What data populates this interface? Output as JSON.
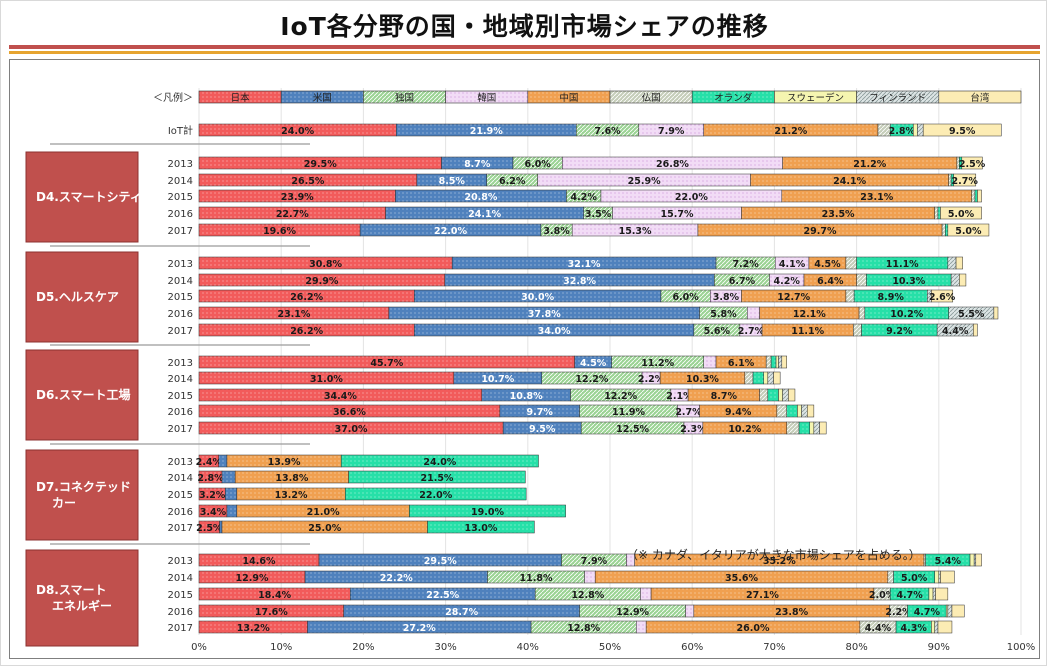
{
  "title": "IoT各分野の国・地域別市場シェアの推移",
  "note": "（※ カナダ、イタリアが大きな市場シェアを占める。）",
  "colors": {
    "日本": "#f25b5b",
    "米国": "#4f81bd",
    "独国": "#9bd394",
    "韓国": "#f2dcf6",
    "中国": "#f0a050",
    "仏国": "#c5cdb9",
    "オランダ": "#26e0a8",
    "スウェーデン": "#f5f5b0",
    "フィンランド": "#dde5e5",
    "台湾": "#fcecb4"
  },
  "chart_data": {
    "type": "bar",
    "orientation": "horizontal",
    "stacked": true,
    "legend_label": "＜凡例＞",
    "legend": [
      "日本",
      "米国",
      "独国",
      "韓国",
      "中国",
      "仏国",
      "オランダ",
      "スウェーデン",
      "フィンランド",
      "台湾"
    ],
    "xlim": [
      0,
      100
    ],
    "xticks": [
      "0%",
      "10%",
      "20%",
      "30%",
      "40%",
      "50%",
      "60%",
      "70%",
      "80%",
      "90%",
      "100%"
    ],
    "groups": [
      {
        "name": "",
        "rows": [
          {
            "label": "IoT計",
            "values": [
              24.0,
              21.9,
              7.6,
              7.9,
              21.2,
              1.5,
              2.8,
              0.5,
              0.7,
              9.5
            ],
            "labels": [
              "24.0%",
              "21.9%",
              "7.6%",
              "7.9%",
              "21.2%",
              "",
              "2.8%",
              "",
              "",
              "9.5%"
            ]
          }
        ]
      },
      {
        "name": "D4.スマートシティ",
        "rows": [
          {
            "label": "2013",
            "values": [
              29.5,
              8.7,
              6.0,
              26.8,
              21.2,
              0.3,
              0.3,
              0.0,
              0.0,
              2.5
            ],
            "labels": [
              "29.5%",
              "8.7%",
              "6.0%",
              "26.8%",
              "21.2%",
              "",
              "",
              "",
              "",
              "2.5%"
            ]
          },
          {
            "label": "2014",
            "values": [
              26.5,
              8.5,
              6.2,
              25.9,
              24.1,
              0.3,
              0.3,
              0.0,
              0.0,
              2.7
            ],
            "labels": [
              "26.5%",
              "8.5%",
              "6.2%",
              "25.9%",
              "24.1%",
              "",
              "",
              "",
              "",
              "2.7%"
            ]
          },
          {
            "label": "2015",
            "values": [
              23.9,
              20.8,
              4.2,
              22.0,
              23.1,
              0.4,
              0.3,
              0.0,
              0.0,
              0.5
            ],
            "labels": [
              "23.9%",
              "20.8%",
              "4.2%",
              "22.0%",
              "23.1%",
              "",
              "",
              "",
              "",
              ""
            ]
          },
          {
            "label": "2016",
            "values": [
              22.7,
              24.1,
              3.5,
              15.7,
              23.5,
              0.4,
              0.3,
              0.0,
              0.0,
              5.0
            ],
            "labels": [
              "22.7%",
              "24.1%",
              "3.5%",
              "15.7%",
              "23.5%",
              "",
              "",
              "",
              "",
              "5.0%"
            ]
          },
          {
            "label": "2017",
            "values": [
              19.6,
              22.0,
              3.8,
              15.3,
              29.7,
              0.4,
              0.3,
              0.0,
              0.0,
              5.0
            ],
            "labels": [
              "19.6%",
              "22.0%",
              "3.8%",
              "15.3%",
              "29.7%",
              "",
              "",
              "",
              "",
              "5.0%"
            ]
          }
        ]
      },
      {
        "name": "D5.ヘルスケア",
        "rows": [
          {
            "label": "2013",
            "values": [
              30.8,
              32.1,
              7.2,
              4.1,
              4.5,
              1.3,
              11.1,
              0.0,
              1.0,
              0.8
            ],
            "labels": [
              "30.8%",
              "32.1%",
              "7.2%",
              "4.1%",
              "4.5%",
              "",
              "11.1%",
              "",
              "",
              ""
            ]
          },
          {
            "label": "2014",
            "values": [
              29.9,
              32.8,
              6.7,
              4.2,
              6.4,
              1.2,
              10.3,
              0.0,
              1.0,
              0.8
            ],
            "labels": [
              "29.9%",
              "32.8%",
              "6.7%",
              "4.2%",
              "6.4%",
              "",
              "10.3%",
              "",
              "",
              ""
            ]
          },
          {
            "label": "2015",
            "values": [
              26.2,
              30.0,
              6.0,
              3.8,
              12.7,
              1.0,
              8.9,
              0.0,
              0.5,
              2.6
            ],
            "labels": [
              "26.2%",
              "30.0%",
              "6.0%",
              "3.8%",
              "12.7%",
              "",
              "8.9%",
              "",
              "",
              "2.6%"
            ]
          },
          {
            "label": "2016",
            "values": [
              23.1,
              37.8,
              5.8,
              1.5,
              12.1,
              0.7,
              10.2,
              0.0,
              5.5,
              0.5
            ],
            "labels": [
              "23.1%",
              "37.8%",
              "5.8%",
              "",
              "12.1%",
              "",
              "10.2%",
              "",
              "5.5%",
              ""
            ]
          },
          {
            "label": "2017",
            "values": [
              26.2,
              34.0,
              5.6,
              2.7,
              11.1,
              1.0,
              9.2,
              0.0,
              4.4,
              0.5
            ],
            "labels": [
              "26.2%",
              "34.0%",
              "5.6%",
              "2.7%",
              "11.1%",
              "",
              "9.2%",
              "",
              "4.4%",
              ""
            ]
          }
        ]
      },
      {
        "name": "D6.スマート工場",
        "rows": [
          {
            "label": "2013",
            "values": [
              45.7,
              4.5,
              11.2,
              1.5,
              6.1,
              0.6,
              0.6,
              0.3,
              0.4,
              0.6
            ],
            "labels": [
              "45.7%",
              "4.5%",
              "11.2%",
              "",
              "6.1%",
              "",
              "",
              "",
              "",
              ""
            ]
          },
          {
            "label": "2014",
            "values": [
              31.0,
              10.7,
              12.2,
              2.2,
              10.3,
              1.0,
              1.3,
              0.5,
              0.7,
              0.8
            ],
            "labels": [
              "31.0%",
              "10.7%",
              "12.2%",
              "2.2%",
              "10.3%",
              "",
              "",
              "",
              "",
              ""
            ]
          },
          {
            "label": "2015",
            "values": [
              34.4,
              10.8,
              12.2,
              2.1,
              8.7,
              1.0,
              1.3,
              0.5,
              0.7,
              0.8
            ],
            "labels": [
              "34.4%",
              "10.8%",
              "12.2%",
              "2.1%",
              "8.7%",
              "",
              "",
              "",
              "",
              ""
            ]
          },
          {
            "label": "2016",
            "values": [
              36.6,
              9.7,
              11.9,
              2.7,
              9.4,
              1.2,
              1.3,
              0.5,
              0.7,
              0.8
            ],
            "labels": [
              "36.6%",
              "9.7%",
              "11.9%",
              "2.7%",
              "9.4%",
              "",
              "",
              "",
              "",
              ""
            ]
          },
          {
            "label": "2017",
            "values": [
              37.0,
              9.5,
              12.5,
              2.3,
              10.2,
              1.5,
              1.3,
              0.5,
              0.7,
              0.8
            ],
            "labels": [
              "37.0%",
              "9.5%",
              "12.5%",
              "2.3%",
              "10.2%",
              "",
              "",
              "",
              "",
              ""
            ]
          }
        ]
      },
      {
        "name": "D7.コネクテッドカー",
        "rows": [
          {
            "label": "2013",
            "values": [
              2.4,
              1.0,
              0,
              0,
              13.9,
              0,
              24.0,
              0,
              0,
              0
            ],
            "labels": [
              "2.4%",
              "",
              "",
              "",
              "13.9%",
              "",
              "24.0%",
              "",
              "",
              ""
            ]
          },
          {
            "label": "2014",
            "values": [
              2.8,
              1.6,
              0,
              0,
              13.8,
              0,
              21.5,
              0,
              0,
              0
            ],
            "labels": [
              "2.8%",
              "",
              "",
              "",
              "13.8%",
              "",
              "21.5%",
              "",
              "",
              ""
            ]
          },
          {
            "label": "2015",
            "values": [
              3.2,
              1.4,
              0,
              0,
              13.2,
              0,
              22.0,
              0,
              0,
              0
            ],
            "labels": [
              "3.2%",
              "",
              "",
              "",
              "13.2%",
              "",
              "22.0%",
              "",
              "",
              ""
            ]
          },
          {
            "label": "2016",
            "values": [
              3.4,
              1.2,
              0,
              0,
              21.0,
              0,
              19.0,
              0,
              0,
              0
            ],
            "labels": [
              "3.4%",
              "",
              "",
              "",
              "21.0%",
              "",
              "19.0%",
              "",
              "",
              ""
            ]
          },
          {
            "label": "2017",
            "values": [
              2.5,
              0.3,
              0,
              0,
              25.0,
              0,
              13.0,
              0,
              0,
              0
            ],
            "labels": [
              "2.5%",
              "",
              "",
              "",
              "25.0%",
              "",
              "13.0%",
              "",
              "",
              ""
            ]
          }
        ]
      },
      {
        "name": "D8.スマートエネルギー",
        "rows": [
          {
            "label": "2013",
            "values": [
              14.6,
              29.5,
              7.9,
              1.0,
              35.2,
              0.2,
              5.4,
              0.5,
              0.2,
              0.7
            ],
            "labels": [
              "14.6%",
              "29.5%",
              "7.9%",
              "",
              "35.2%",
              "",
              "5.4%",
              "",
              "",
              ""
            ]
          },
          {
            "label": "2014",
            "values": [
              12.9,
              22.2,
              11.8,
              1.3,
              35.6,
              0.7,
              5.0,
              0.5,
              0.2,
              1.7
            ],
            "labels": [
              "12.9%",
              "22.2%",
              "11.8%",
              "",
              "35.6%",
              "",
              "5.0%",
              "",
              "",
              ""
            ]
          },
          {
            "label": "2015",
            "values": [
              18.4,
              22.5,
              12.8,
              1.3,
              27.1,
              2.0,
              4.7,
              0.5,
              0.3,
              1.5
            ],
            "labels": [
              "18.4%",
              "22.5%",
              "12.8%",
              "",
              "27.1%",
              "2.0%",
              "4.7%",
              "",
              "",
              ""
            ]
          },
          {
            "label": "2016",
            "values": [
              17.6,
              28.7,
              12.9,
              1.0,
              23.8,
              2.2,
              4.7,
              0.2,
              0.5,
              1.5
            ],
            "labels": [
              "17.6%",
              "28.7%",
              "12.9%",
              "",
              "23.8%",
              "2.2%",
              "4.7%",
              "",
              "",
              ""
            ]
          },
          {
            "label": "2017",
            "values": [
              13.2,
              27.2,
              12.8,
              1.2,
              26.0,
              4.4,
              4.3,
              0.4,
              0.4,
              1.7
            ],
            "labels": [
              "13.2%",
              "27.2%",
              "12.8%",
              "",
              "26.0%",
              "4.4%",
              "4.3%",
              "",
              "",
              ""
            ]
          }
        ]
      }
    ]
  }
}
